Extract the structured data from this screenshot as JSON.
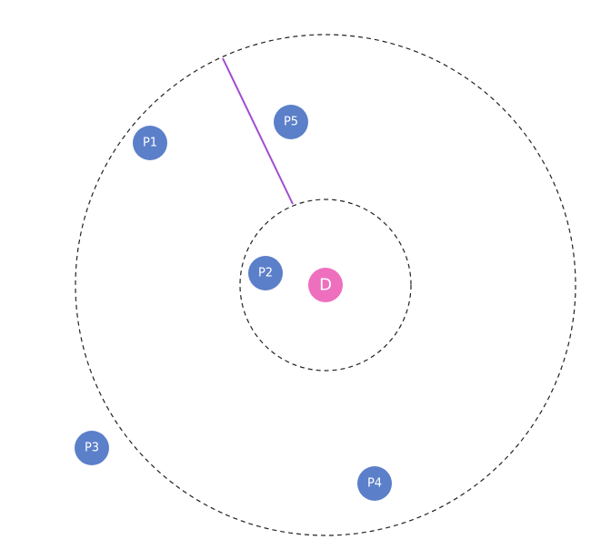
{
  "colors": {
    "point": "#5b7fc9",
    "center": "#ee6fbe",
    "radius_line": "#a24bd0",
    "circle_stroke": "#222222",
    "background": "#ffffff"
  },
  "center": {
    "label": "D"
  },
  "points": [
    {
      "label": "P1"
    },
    {
      "label": "P2"
    },
    {
      "label": "P3"
    },
    {
      "label": "P4"
    },
    {
      "label": "P5"
    }
  ]
}
